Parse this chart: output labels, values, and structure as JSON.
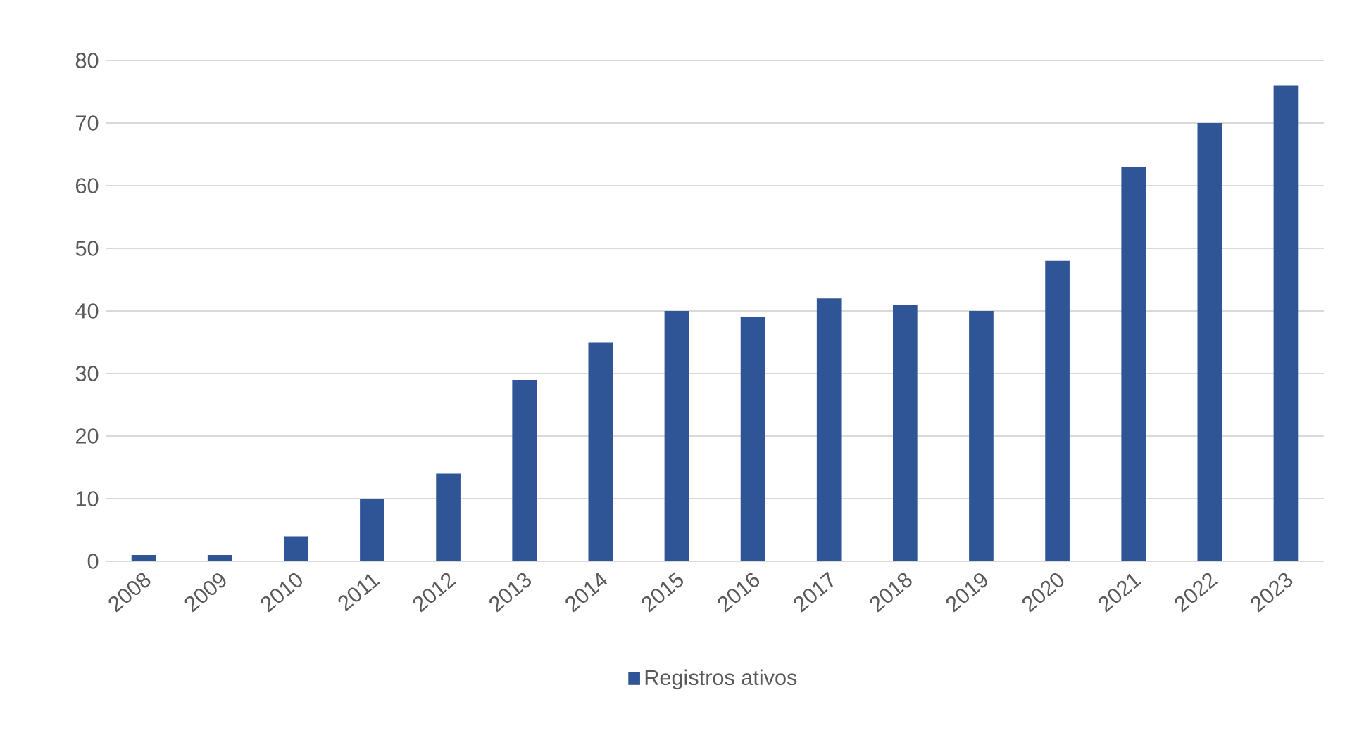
{
  "chart_data": {
    "type": "bar",
    "categories": [
      "2008",
      "2009",
      "2010",
      "2011",
      "2012",
      "2013",
      "2014",
      "2015",
      "2016",
      "2017",
      "2018",
      "2019",
      "2020",
      "2021",
      "2022",
      "2023"
    ],
    "series": [
      {
        "name": "Registros ativos",
        "color": "#2f5597",
        "values": [
          1,
          1,
          4,
          10,
          14,
          29,
          35,
          40,
          39,
          42,
          41,
          40,
          48,
          63,
          70,
          76
        ]
      }
    ],
    "ylim": [
      0,
      80
    ],
    "yticks": [
      0,
      10,
      20,
      30,
      40,
      50,
      60,
      70,
      80
    ],
    "grid": "y",
    "legend": "bottom"
  }
}
